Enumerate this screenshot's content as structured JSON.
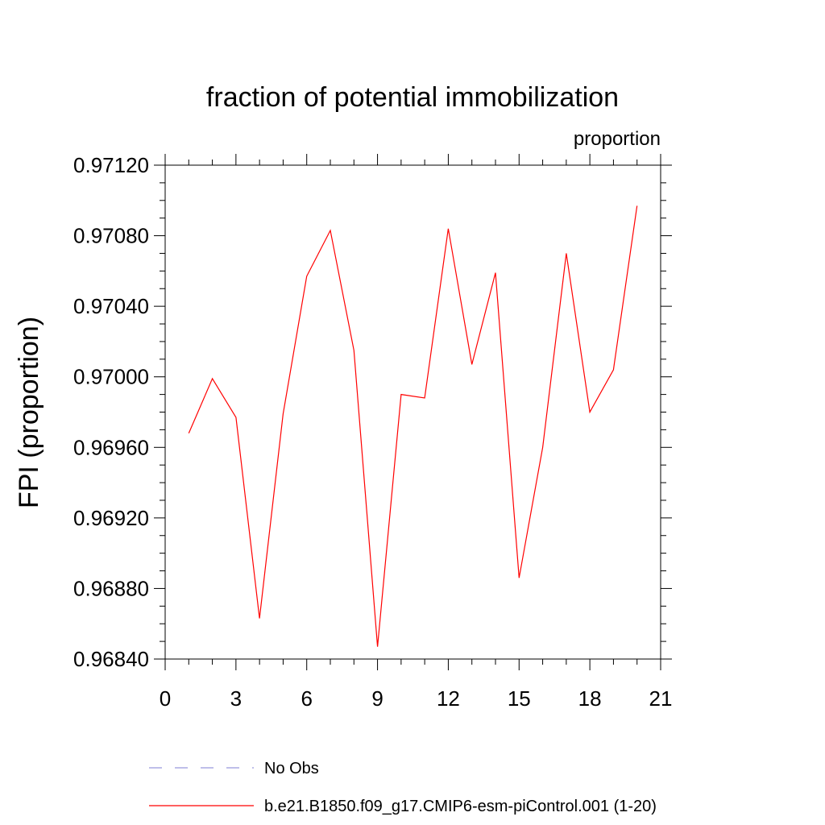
{
  "chart_data": {
    "type": "line",
    "title": "fraction of potential immobilization",
    "units_label": "proportion",
    "xlabel": "",
    "ylabel": "FPI  (proportion)",
    "xlim": [
      0,
      21
    ],
    "ylim": [
      0.9684,
      0.9712
    ],
    "x_ticks": [
      "0",
      "3",
      "6",
      "9",
      "12",
      "15",
      "18",
      "21"
    ],
    "y_ticks": [
      "0.96840",
      "0.96880",
      "0.96920",
      "0.96960",
      "0.97000",
      "0.97040",
      "0.97080",
      "0.97120"
    ],
    "grid": false,
    "legend_position": "bottom",
    "x": [
      1,
      2,
      3,
      4,
      5,
      6,
      7,
      8,
      9,
      10,
      11,
      12,
      13,
      14,
      15,
      16,
      17,
      18,
      19,
      20
    ],
    "series": [
      {
        "name": "b.e21.B1850.f09_g17.CMIP6-esm-piControl.001 (1-20)",
        "color": "#ff0000",
        "style": "solid",
        "values": [
          0.96968,
          0.96999,
          0.96977,
          0.96863,
          0.96979,
          0.97057,
          0.97083,
          0.97015,
          0.96847,
          0.9699,
          0.96988,
          0.97084,
          0.97007,
          0.97059,
          0.96886,
          0.9696,
          0.9707,
          0.9698,
          0.97004,
          0.97097
        ]
      }
    ],
    "legend": [
      {
        "label": "No Obs",
        "color": "#9999dd",
        "style": "dashed"
      },
      {
        "label": "b.e21.B1850.f09_g17.CMIP6-esm-piControl.001 (1-20)",
        "color": "#ff0000",
        "style": "solid"
      }
    ]
  }
}
